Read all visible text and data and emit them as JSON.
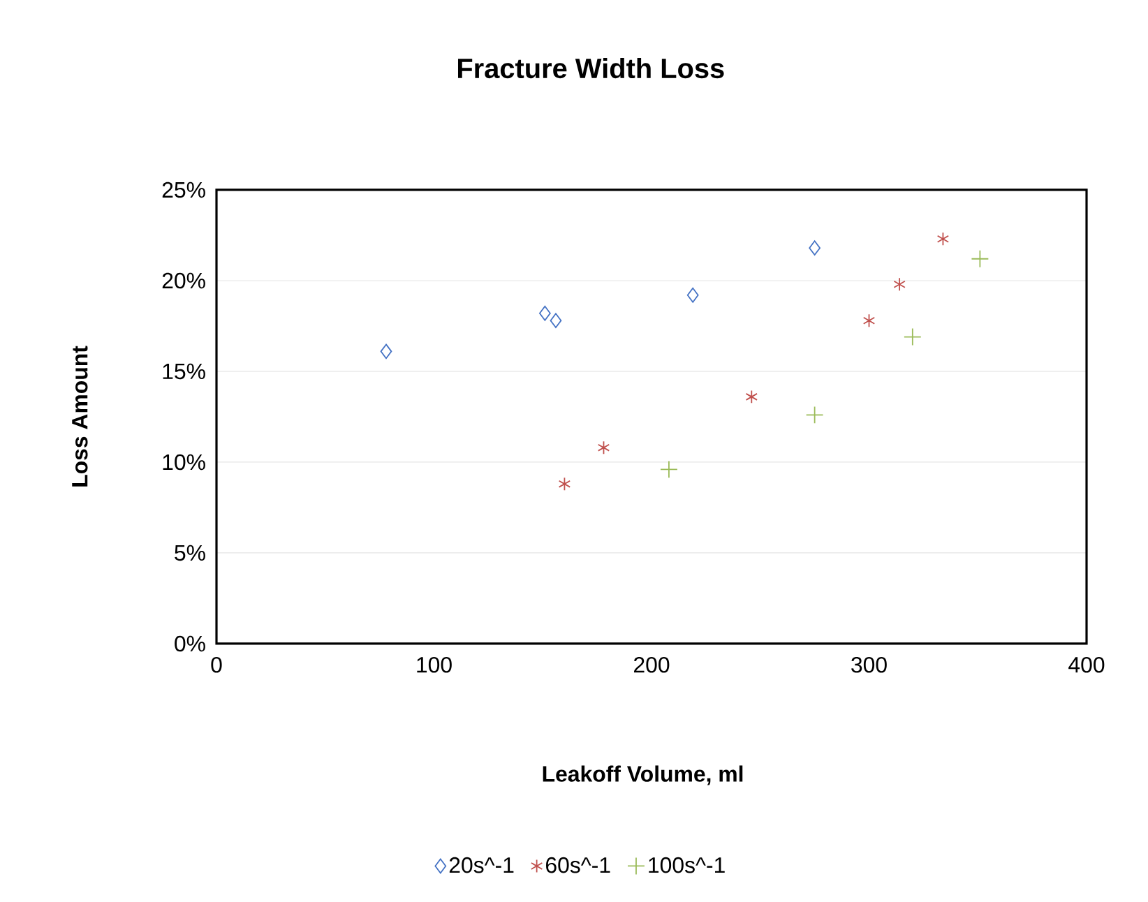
{
  "chart_data": {
    "type": "scatter",
    "title": "Fracture Width Loss",
    "xlabel": "Leakoff Volume, ml",
    "ylabel": "Loss Amount",
    "xlim": [
      0,
      400
    ],
    "xticks": [
      0,
      100,
      200,
      300,
      400
    ],
    "ylim": [
      0,
      25
    ],
    "yticks": [
      {
        "value": 0,
        "label": "0%"
      },
      {
        "value": 5,
        "label": "5%"
      },
      {
        "value": 10,
        "label": "10%"
      },
      {
        "value": 15,
        "label": "15%"
      },
      {
        "value": 20,
        "label": "20%"
      },
      {
        "value": 25,
        "label": "25%"
      }
    ],
    "grid": "y",
    "legend": "bottom",
    "series": [
      {
        "name": "20s^-1",
        "color": "#4472c4",
        "marker": "diamond",
        "x": [
          78,
          151,
          156,
          219,
          275
        ],
        "values": [
          16.1,
          18.2,
          17.8,
          19.2,
          21.8
        ]
      },
      {
        "name": "60s^-1",
        "color": "#c0504d",
        "x": [
          160,
          178,
          246,
          300,
          314,
          334
        ],
        "values": [
          8.8,
          10.8,
          13.6,
          17.8,
          19.8,
          22.3
        ]
      },
      {
        "name": "100s^-1",
        "color": "#9bbb59",
        "marker": "cross",
        "x": [
          208,
          275,
          320,
          351
        ],
        "values": [
          9.6,
          12.6,
          16.9,
          21.2
        ]
      }
    ]
  }
}
